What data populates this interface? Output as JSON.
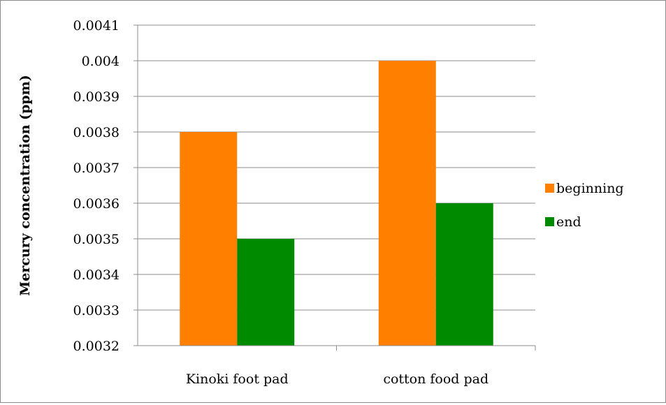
{
  "chart_data": {
    "type": "bar",
    "title": "",
    "xlabel": "",
    "ylabel": "Mercury concentration (ppm)",
    "categories": [
      "Kinoki foot pad",
      "cotton food pad"
    ],
    "series": [
      {
        "name": "beginning",
        "values": [
          0.0038,
          0.004
        ],
        "color": "#ff7f00"
      },
      {
        "name": "end",
        "values": [
          0.0035,
          0.0036
        ],
        "color": "#008a00"
      }
    ],
    "ylim": [
      0.0032,
      0.0041
    ],
    "yticks": [
      "0.0032",
      "0.0033",
      "0.0034",
      "0.0035",
      "0.0036",
      "0.0037",
      "0.0038",
      "0.0039",
      "0.004",
      "0.0041"
    ],
    "grid": true,
    "legend_position": "right"
  }
}
